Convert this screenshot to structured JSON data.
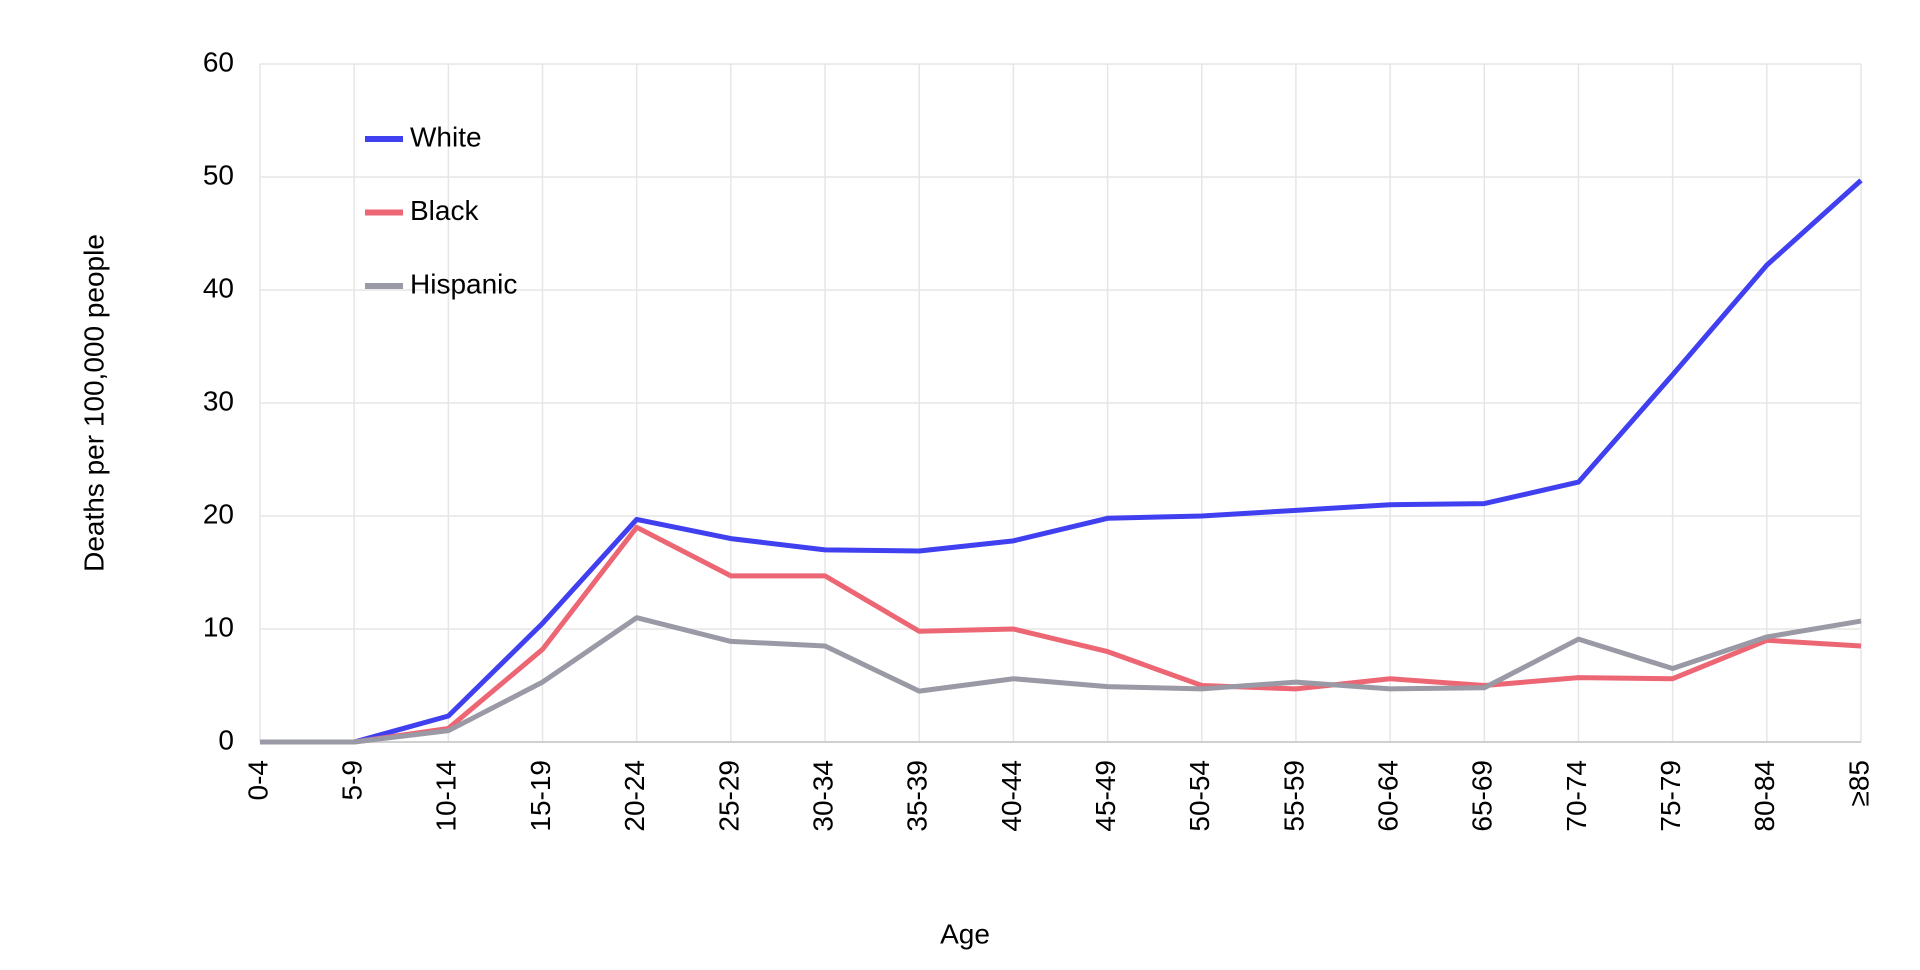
{
  "chart_data": {
    "type": "line",
    "x_label": "Age",
    "y_label": "Deaths per 100,000 people",
    "categories": [
      "0-4",
      "5-9",
      "10-14",
      "15-19",
      "20-24",
      "25-29",
      "30-34",
      "35-39",
      "40-44",
      "45-49",
      "50-54",
      "55-59",
      "60-64",
      "65-69",
      "70-74",
      "75-79",
      "80-84",
      "≥85"
    ],
    "series": [
      {
        "name": "White",
        "color": "#4040f0",
        "values": [
          0,
          0,
          2.3,
          10.5,
          19.7,
          18,
          17,
          16.9,
          17.8,
          19.8,
          20,
          20.5,
          21,
          21.1,
          23,
          32.5,
          42.2,
          49.7
        ]
      },
      {
        "name": "Black",
        "color": "#ec6674",
        "values": [
          0,
          0,
          1.2,
          8.2,
          19,
          14.7,
          14.7,
          9.8,
          10,
          8,
          5,
          4.7,
          5.6,
          5,
          5.7,
          5.6,
          9,
          8.5
        ]
      },
      {
        "name": "Hispanic",
        "color": "#9a9aa6",
        "values": [
          0,
          0,
          1,
          5.3,
          11,
          8.9,
          8.5,
          4.5,
          5.6,
          4.9,
          4.7,
          5.3,
          4.7,
          4.8,
          9.1,
          6.5,
          9.3,
          10.7
        ]
      }
    ],
    "ylim": [
      0,
      60
    ],
    "yticks": [
      0,
      10,
      20,
      30,
      40,
      50,
      60
    ],
    "grid": true,
    "legend": "upper-left"
  }
}
